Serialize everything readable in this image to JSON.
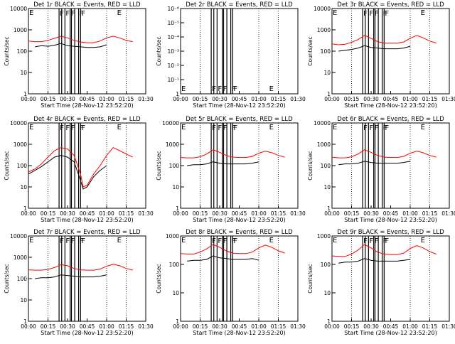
{
  "chart_data": [
    {
      "type": "line",
      "title": "Det 1r BLACK = Events, RED = LLD",
      "xlabel": "Start Time (28-Nov-12 23:52:20)",
      "ylabel": "Counts/sec",
      "yscale": "log",
      "ylim": [
        1,
        10000
      ],
      "x_ticks": [
        "00:00",
        "00:15",
        "00:30",
        "00:45",
        "01:00",
        "01:15",
        "01:30"
      ],
      "y_ticks": [
        "1",
        "10",
        "100",
        "1000",
        "10000"
      ],
      "flags": [
        "F",
        "F",
        "F",
        "F",
        "F"
      ],
      "flag_x": [
        23.5,
        28,
        32,
        38.5,
        40
      ],
      "bars": [
        23.5,
        25.5,
        28,
        32,
        33,
        35.5,
        38.5,
        40
      ],
      "edge_labels": [
        "E",
        "E"
      ],
      "series": [
        {
          "color": "#ff0000",
          "x": [
            0,
            5,
            10,
            15,
            20,
            25,
            30,
            35,
            40,
            45,
            50,
            55,
            60,
            65,
            70,
            75,
            80
          ],
          "values": [
            300,
            280,
            280,
            320,
            400,
            500,
            420,
            320,
            270,
            250,
            250,
            300,
            420,
            500,
            420,
            320,
            280
          ]
        },
        {
          "color": "#000000",
          "x": [
            5,
            10,
            15,
            20,
            25,
            30,
            35,
            40,
            45,
            50,
            55,
            60
          ],
          "values": [
            160,
            180,
            170,
            190,
            230,
            180,
            170,
            160,
            150,
            150,
            160,
            200
          ]
        }
      ]
    },
    {
      "type": "line",
      "title": "Det 2r BLACK = Events, RED = LLD",
      "xlabel": "Start Time (28-Nov-12 23:52:20)",
      "ylabel": "Counts/sec",
      "yscale": "log",
      "ylim": [
        1,
        1e-06
      ],
      "x_ticks": [
        "00:00",
        "00:15",
        "00:30",
        "00:45",
        "01:00",
        "01:15",
        "01:30"
      ],
      "y_ticks": [
        "1",
        "10⁻¹",
        "10⁻²",
        "10⁻³",
        "10⁻⁴",
        "10⁻⁵",
        "10⁻⁶"
      ],
      "flags": [
        "F",
        "F",
        "F",
        "F",
        "F"
      ],
      "flag_x": [
        23.5,
        28,
        32,
        38.5,
        40
      ],
      "bars": [
        23.5,
        25.5,
        28,
        32,
        33,
        35.5,
        38.5,
        40
      ],
      "edge_labels": [
        "E",
        "E"
      ],
      "series": []
    },
    {
      "type": "line",
      "title": "Det 3r BLACK = Events, RED = LLD",
      "xlabel": "Start Time (28-Nov-12 23:52:20)",
      "ylabel": "Counts/sec",
      "yscale": "log",
      "ylim": [
        1,
        10000
      ],
      "x_ticks": [
        "00:00",
        "00:15",
        "00:30",
        "00:45",
        "01:00",
        "01:15",
        "01:30"
      ],
      "y_ticks": [
        "1",
        "10",
        "100",
        "1000",
        "10000"
      ],
      "flags": [
        "F",
        "F",
        "F",
        "F",
        "F"
      ],
      "flag_x": [
        23.5,
        28,
        32,
        38.5,
        40
      ],
      "bars": [
        23.5,
        25.5,
        28,
        32,
        33,
        35.5,
        38.5,
        40
      ],
      "edge_labels": [
        "E",
        "E"
      ],
      "series": [
        {
          "color": "#ff0000",
          "x": [
            0,
            5,
            10,
            15,
            20,
            25,
            30,
            35,
            40,
            45,
            50,
            55,
            60,
            65,
            70,
            75,
            80
          ],
          "values": [
            220,
            200,
            210,
            260,
            350,
            550,
            400,
            280,
            240,
            240,
            240,
            270,
            400,
            550,
            420,
            300,
            240
          ]
        },
        {
          "color": "#000000",
          "x": [
            5,
            10,
            15,
            20,
            25,
            30,
            35,
            40,
            45,
            50,
            55,
            60
          ],
          "values": [
            100,
            110,
            120,
            140,
            180,
            150,
            140,
            130,
            130,
            130,
            140,
            170
          ]
        }
      ]
    },
    {
      "type": "line",
      "title": "Det 4r BLACK = Events, RED = LLD",
      "xlabel": "Start Time (28-Nov-12 23:52:20)",
      "ylabel": "Counts/sec",
      "yscale": "log",
      "ylim": [
        1,
        10000
      ],
      "x_ticks": [
        "00:00",
        "00:15",
        "00:30",
        "00:45",
        "01:00",
        "01:15",
        "01:30"
      ],
      "y_ticks": [
        "1",
        "10",
        "100",
        "1000",
        "10000"
      ],
      "flags": [
        "F",
        "F",
        "F",
        "F",
        "F"
      ],
      "flag_x": [
        23.5,
        28,
        32,
        38.5,
        40
      ],
      "bars": [
        23.5,
        25.5,
        28,
        32,
        33,
        35.5,
        38.5,
        40
      ],
      "edge_labels": [
        "E",
        "E"
      ],
      "series": [
        {
          "color": "#ff0000",
          "x": [
            0,
            5,
            10,
            15,
            20,
            25,
            30,
            35,
            40,
            42,
            45,
            50,
            55,
            60,
            65,
            70,
            75,
            80
          ],
          "values": [
            50,
            70,
            120,
            250,
            500,
            700,
            600,
            300,
            40,
            10,
            12,
            40,
            100,
            300,
            700,
            500,
            350,
            250
          ]
        },
        {
          "color": "#000000",
          "x": [
            0,
            5,
            10,
            15,
            20,
            25,
            30,
            35,
            40,
            42,
            45,
            50,
            55,
            60
          ],
          "values": [
            40,
            60,
            90,
            150,
            250,
            300,
            250,
            150,
            20,
            8,
            10,
            30,
            60,
            100
          ]
        }
      ]
    },
    {
      "type": "line",
      "title": "Det 5r BLACK = Events, RED = LLD",
      "xlabel": "Start Time (28-Nov-12 23:52:20)",
      "ylabel": "Counts/sec",
      "yscale": "log",
      "ylim": [
        1,
        10000
      ],
      "x_ticks": [
        "00:00",
        "00:15",
        "00:30",
        "00:45",
        "01:00",
        "01:15",
        "01:30"
      ],
      "y_ticks": [
        "1",
        "10",
        "100",
        "1000",
        "10000"
      ],
      "flags": [
        "F",
        "F",
        "F",
        "F",
        "F"
      ],
      "flag_x": [
        23.5,
        28,
        32,
        38.5,
        40
      ],
      "bars": [
        23.5,
        25.5,
        28,
        32,
        33,
        35.5,
        38.5,
        40
      ],
      "edge_labels": [
        "E",
        "E"
      ],
      "series": [
        {
          "color": "#ff0000",
          "x": [
            0,
            5,
            10,
            15,
            20,
            25,
            30,
            35,
            40,
            45,
            50,
            55,
            60,
            65,
            70,
            75,
            80
          ],
          "values": [
            240,
            230,
            230,
            260,
            350,
            550,
            420,
            300,
            250,
            240,
            240,
            270,
            380,
            480,
            400,
            300,
            250
          ]
        },
        {
          "color": "#000000",
          "x": [
            5,
            10,
            15,
            20,
            25,
            30,
            35,
            40,
            45,
            50,
            55,
            60
          ],
          "values": [
            100,
            110,
            110,
            120,
            150,
            130,
            120,
            120,
            120,
            120,
            130,
            150
          ]
        }
      ]
    },
    {
      "type": "line",
      "title": "Det 6r BLACK = Events, RED = LLD",
      "xlabel": "Start Time (28-Nov-12 23:52:20)",
      "ylabel": "Counts/sec",
      "yscale": "log",
      "ylim": [
        1,
        10000
      ],
      "x_ticks": [
        "00:00",
        "00:15",
        "00:30",
        "00:45",
        "01:00",
        "01:15",
        "01:30"
      ],
      "y_ticks": [
        "1",
        "10",
        "100",
        "1000",
        "10000"
      ],
      "flags": [
        "F",
        "F",
        "F",
        "F",
        "F"
      ],
      "flag_x": [
        23.5,
        28,
        32,
        38.5,
        40
      ],
      "bars": [
        23.5,
        25.5,
        28,
        32,
        33,
        35.5,
        38.5,
        40
      ],
      "edge_labels": [
        "E",
        "E"
      ],
      "series": [
        {
          "color": "#ff0000",
          "x": [
            0,
            5,
            10,
            15,
            20,
            25,
            30,
            35,
            40,
            45,
            50,
            55,
            60,
            65,
            70,
            75,
            80
          ],
          "values": [
            250,
            230,
            230,
            260,
            350,
            550,
            420,
            300,
            250,
            240,
            240,
            270,
            380,
            480,
            400,
            300,
            250
          ]
        },
        {
          "color": "#000000",
          "x": [
            5,
            10,
            15,
            20,
            25,
            30,
            35,
            40,
            45,
            50,
            55,
            60
          ],
          "values": [
            110,
            120,
            120,
            130,
            160,
            140,
            130,
            130,
            130,
            130,
            140,
            160
          ]
        }
      ]
    },
    {
      "type": "line",
      "title": "Det 7r BLACK = Events, RED = LLD",
      "xlabel": "Start Time (28-Nov-12 23:52:20)",
      "ylabel": "Counts/sec",
      "yscale": "log",
      "ylim": [
        1,
        10000
      ],
      "x_ticks": [
        "00:00",
        "00:15",
        "00:30",
        "00:45",
        "01:00",
        "01:15",
        "01:30"
      ],
      "y_ticks": [
        "1",
        "10",
        "100",
        "1000",
        "10000"
      ],
      "flags": [
        "F",
        "F",
        "F",
        "F",
        "F"
      ],
      "flag_x": [
        23.5,
        28,
        32,
        38.5,
        40
      ],
      "bars": [
        23.5,
        25.5,
        28,
        32,
        33,
        35.5,
        38.5,
        40
      ],
      "edge_labels": [
        "E",
        "E"
      ],
      "series": [
        {
          "color": "#ff0000",
          "x": [
            0,
            5,
            10,
            15,
            20,
            25,
            30,
            35,
            40,
            45,
            50,
            55,
            60,
            65,
            70,
            75,
            80
          ],
          "values": [
            260,
            250,
            250,
            270,
            330,
            450,
            400,
            300,
            260,
            250,
            250,
            280,
            380,
            470,
            400,
            300,
            250
          ]
        },
        {
          "color": "#000000",
          "x": [
            5,
            10,
            15,
            20,
            25,
            30,
            35,
            40,
            45,
            50,
            55,
            60
          ],
          "values": [
            100,
            110,
            110,
            120,
            150,
            140,
            130,
            120,
            120,
            120,
            130,
            150
          ]
        }
      ]
    },
    {
      "type": "line",
      "title": "Det 8r BLACK = Events, RED = LLD",
      "xlabel": "Start Time (28-Nov-12 23:52:20)",
      "ylabel": "Counts/sec",
      "yscale": "log",
      "ylim": [
        1,
        1000
      ],
      "x_ticks": [
        "00:00",
        "00:15",
        "00:30",
        "00:45",
        "01:00",
        "01:15",
        "01:30"
      ],
      "y_ticks": [
        "1",
        "10",
        "100",
        "1000"
      ],
      "flags": [
        "F",
        "F",
        "F",
        "F",
        "F"
      ],
      "flag_x": [
        23.5,
        28,
        32,
        38.5,
        40
      ],
      "bars": [
        23.5,
        25.5,
        28,
        32,
        33,
        35.5,
        38.5,
        40
      ],
      "edge_labels": [
        "E",
        "E"
      ],
      "series": [
        {
          "color": "#ff0000",
          "x": [
            0,
            5,
            10,
            15,
            20,
            25,
            30,
            35,
            40,
            45,
            50,
            55,
            60,
            65,
            70,
            75,
            80
          ],
          "values": [
            240,
            230,
            230,
            270,
            350,
            500,
            400,
            300,
            250,
            240,
            240,
            270,
            380,
            480,
            400,
            300,
            250
          ]
        },
        {
          "color": "#000000",
          "x": [
            5,
            10,
            15,
            20,
            25,
            30,
            35,
            40,
            45,
            50,
            55,
            60
          ],
          "values": [
            130,
            140,
            140,
            150,
            200,
            170,
            160,
            150,
            150,
            150,
            160,
            140
          ]
        }
      ]
    },
    {
      "type": "line",
      "title": "Det 9r BLACK = Events, RED = LLD",
      "xlabel": "Start Time (28-Nov-12 23:52:20)",
      "ylabel": "Counts/sec",
      "yscale": "log",
      "ylim": [
        1,
        1000
      ],
      "x_ticks": [
        "00:00",
        "00:15",
        "00:30",
        "00:45",
        "01:00",
        "01:15",
        "01:30"
      ],
      "y_ticks": [
        "1",
        "10",
        "100",
        "1000"
      ],
      "flags": [
        "F",
        "F",
        "F",
        "F",
        "F"
      ],
      "flag_x": [
        23.5,
        28,
        32,
        38.5,
        40
      ],
      "bars": [
        23.5,
        25.5,
        28,
        32,
        33,
        35.5,
        38.5,
        40
      ],
      "edge_labels": [
        "E",
        "E"
      ],
      "series": [
        {
          "color": "#ff0000",
          "x": [
            0,
            5,
            10,
            15,
            20,
            25,
            30,
            35,
            40,
            45,
            50,
            55,
            60,
            65,
            70,
            75,
            80
          ],
          "values": [
            200,
            190,
            190,
            230,
            320,
            500,
            380,
            270,
            230,
            220,
            220,
            250,
            360,
            460,
            380,
            280,
            230
          ]
        },
        {
          "color": "#000000",
          "x": [
            5,
            10,
            15,
            20,
            25,
            30,
            35,
            40,
            45,
            50,
            55,
            60
          ],
          "values": [
            110,
            120,
            120,
            130,
            160,
            140,
            130,
            130,
            130,
            130,
            140,
            150
          ]
        }
      ]
    }
  ]
}
